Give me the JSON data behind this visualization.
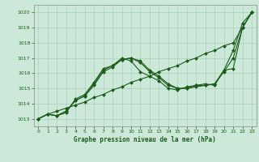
{
  "title": "Graphe pression niveau de la mer (hPa)",
  "background_color": "#cce8d8",
  "grid_color": "#aacfba",
  "line_color": "#1a5c1a",
  "marker_color": "#1a5c1a",
  "xlim": [
    -0.5,
    23.5
  ],
  "ylim": [
    1012.5,
    1020.5
  ],
  "yticks": [
    1013,
    1014,
    1015,
    1016,
    1017,
    1018,
    1019,
    1020
  ],
  "xticks": [
    0,
    1,
    2,
    3,
    4,
    5,
    6,
    7,
    8,
    9,
    10,
    11,
    12,
    13,
    14,
    15,
    16,
    17,
    18,
    19,
    20,
    21,
    22,
    23
  ],
  "series": [
    {
      "x": [
        0,
        1,
        2,
        3,
        4,
        5,
        6,
        7,
        8,
        9,
        10,
        11,
        12,
        13,
        14,
        15,
        16,
        17,
        18,
        19,
        20,
        21,
        22,
        23
      ],
      "y": [
        1013.0,
        1013.3,
        1013.5,
        1013.7,
        1013.9,
        1014.1,
        1014.4,
        1014.6,
        1014.9,
        1015.1,
        1015.4,
        1015.6,
        1015.8,
        1016.1,
        1016.3,
        1016.5,
        1016.8,
        1017.0,
        1017.3,
        1017.5,
        1017.8,
        1018.0,
        1019.0,
        1020.0
      ]
    },
    {
      "x": [
        0,
        1,
        2,
        3,
        4,
        5,
        6,
        7,
        8,
        9,
        10,
        11,
        12,
        13,
        14,
        15,
        16,
        17,
        18,
        19,
        20,
        21,
        22,
        23
      ],
      "y": [
        1013.0,
        1013.3,
        1013.2,
        1013.4,
        1014.3,
        1014.6,
        1015.4,
        1016.3,
        1016.5,
        1017.0,
        1016.8,
        1016.1,
        1015.8,
        1015.5,
        1015.0,
        1014.9,
        1015.1,
        1015.2,
        1015.3,
        1015.2,
        1016.2,
        1016.3,
        1019.0,
        1020.0
      ]
    },
    {
      "x": [
        0,
        1,
        2,
        3,
        4,
        5,
        6,
        7,
        8,
        9,
        10,
        11,
        12,
        13,
        14,
        15,
        16,
        17,
        18,
        19,
        20,
        21,
        22,
        23
      ],
      "y": [
        1013.0,
        1013.3,
        1013.2,
        1013.5,
        1014.2,
        1014.5,
        1015.3,
        1016.2,
        1016.5,
        1016.9,
        1017.0,
        1016.8,
        1016.2,
        1015.8,
        1015.3,
        1015.0,
        1015.0,
        1015.2,
        1015.2,
        1015.3,
        1016.2,
        1017.5,
        1019.3,
        1020.0
      ]
    },
    {
      "x": [
        0,
        1,
        2,
        3,
        4,
        5,
        6,
        7,
        8,
        9,
        10,
        11,
        12,
        13,
        14,
        15,
        16,
        17,
        18,
        19,
        20,
        21,
        22,
        23
      ],
      "y": [
        1013.0,
        1013.3,
        1013.2,
        1013.5,
        1014.2,
        1014.5,
        1015.2,
        1016.1,
        1016.4,
        1016.9,
        1017.0,
        1016.7,
        1016.1,
        1015.7,
        1015.2,
        1015.0,
        1015.0,
        1015.1,
        1015.2,
        1015.3,
        1016.1,
        1017.0,
        1019.0,
        1020.0
      ]
    }
  ]
}
